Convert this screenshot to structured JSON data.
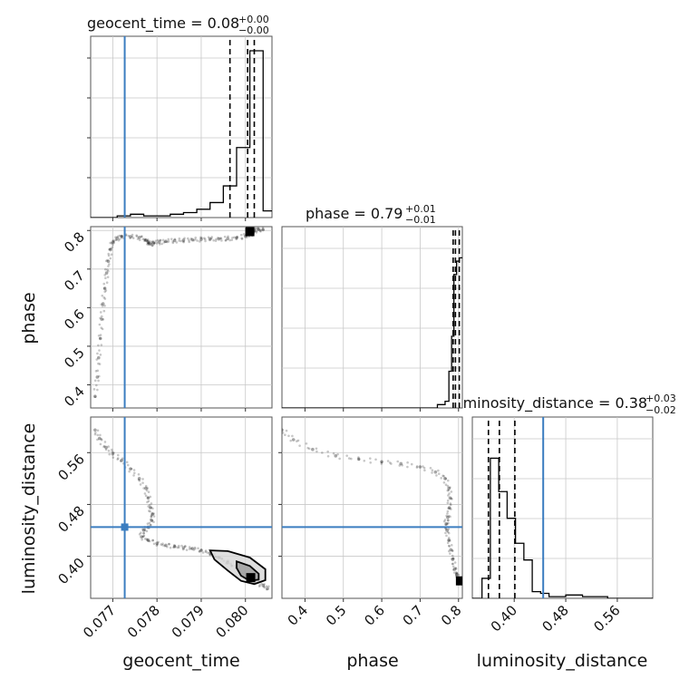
{
  "chart_data": {
    "type": "corner",
    "parameters": [
      {
        "name": "geocent_time",
        "axis_label": "geocent_time",
        "range": [
          0.0765,
          0.0806
        ],
        "ticks": [
          0.077,
          0.078,
          0.079,
          0.08
        ],
        "tick_labels": [
          "0.077",
          "0.078",
          "0.079",
          "0.080"
        ],
        "truth": 0.07727,
        "quantiles": [
          0.07965,
          0.08005,
          0.0802
        ],
        "title_text": "geocent_time = 0.08",
        "title_upper": "+0.00",
        "title_lower": "−0.00",
        "hist_edges": [
          0.0765,
          0.0768,
          0.0771,
          0.0774,
          0.0777,
          0.078,
          0.0783,
          0.0786,
          0.0789,
          0.0792,
          0.0795,
          0.0798,
          0.0801,
          0.0804,
          0.0806
        ],
        "hist_values": [
          0,
          0,
          0.01,
          0.02,
          0.01,
          0.01,
          0.02,
          0.03,
          0.05,
          0.09,
          0.19,
          0.42,
          1.0,
          0.04
        ]
      },
      {
        "name": "phase",
        "axis_label": "phase",
        "range": [
          0.34,
          0.81
        ],
        "ticks": [
          0.4,
          0.5,
          0.6,
          0.7,
          0.8
        ],
        "tick_labels": [
          "0.4",
          "0.5",
          "0.6",
          "0.7",
          "0.8"
        ],
        "truth": null,
        "quantiles": [
          0.786,
          0.792,
          0.802
        ],
        "title_text": "phase = 0.79",
        "title_upper": "+0.01",
        "title_lower": "−0.01",
        "hist_edges": [
          0.34,
          0.745,
          0.765,
          0.775,
          0.782,
          0.788,
          0.795,
          0.802,
          0.81
        ],
        "hist_values": [
          0,
          0.02,
          0.04,
          0.22,
          0.43,
          0.8,
          0.88,
          0.9
        ]
      },
      {
        "name": "luminosity_distance",
        "axis_label": "luminosity_distance",
        "range": [
          0.335,
          0.615
        ],
        "ticks": [
          0.4,
          0.48,
          0.56
        ],
        "tick_labels": [
          "0.40",
          "0.48",
          "0.56"
        ],
        "truth": 0.445,
        "quantiles": [
          0.36,
          0.377,
          0.401
        ],
        "title_text": "luminosity_distance = 0.38",
        "title_upper": "+0.03",
        "title_lower": "−0.02",
        "hist_edges": [
          0.335,
          0.35,
          0.363,
          0.376,
          0.389,
          0.402,
          0.415,
          0.428,
          0.441,
          0.454,
          0.467,
          0.48,
          0.493,
          0.506,
          0.519,
          0.532,
          0.545,
          0.615
        ],
        "hist_values": [
          0,
          0.12,
          0.84,
          0.64,
          0.48,
          0.33,
          0.23,
          0.04,
          0.03,
          0.01,
          0.01,
          0.02,
          0.02,
          0.01,
          0.01,
          0.01,
          0
        ]
      }
    ],
    "y_tick_labels": {
      "phase": [
        "0.4",
        "0.5",
        "0.6",
        "0.7",
        "0.8"
      ],
      "luminosity_distance": [
        "0.40",
        "0.48",
        "0.56"
      ]
    },
    "samples": {
      "geocent_time_vs_phase": [
        [
          0.0766,
          0.37
        ],
        [
          0.07665,
          0.42
        ],
        [
          0.07668,
          0.47
        ],
        [
          0.07672,
          0.52
        ],
        [
          0.07675,
          0.57
        ],
        [
          0.07678,
          0.61
        ],
        [
          0.07682,
          0.65
        ],
        [
          0.07686,
          0.69
        ],
        [
          0.0769,
          0.72
        ],
        [
          0.07695,
          0.75
        ],
        [
          0.077,
          0.77
        ],
        [
          0.0771,
          0.78
        ],
        [
          0.0772,
          0.785
        ],
        [
          0.0774,
          0.784
        ],
        [
          0.0776,
          0.782
        ],
        [
          0.07775,
          0.775
        ],
        [
          0.0778,
          0.77
        ],
        [
          0.07785,
          0.765
        ],
        [
          0.07792,
          0.768
        ],
        [
          0.07805,
          0.77
        ],
        [
          0.0782,
          0.772
        ],
        [
          0.0784,
          0.774
        ],
        [
          0.0786,
          0.775
        ],
        [
          0.0788,
          0.776
        ],
        [
          0.079,
          0.777
        ],
        [
          0.0792,
          0.778
        ],
        [
          0.0794,
          0.778
        ],
        [
          0.0796,
          0.779
        ],
        [
          0.0798,
          0.781
        ],
        [
          0.08,
          0.785
        ],
        [
          0.0801,
          0.79
        ],
        [
          0.08015,
          0.795
        ],
        [
          0.0802,
          0.8
        ],
        [
          0.0803,
          0.803
        ],
        [
          0.0804,
          0.802
        ]
      ],
      "geocent_time_vs_luminosity_distance": [
        [
          0.0766,
          0.595
        ],
        [
          0.0767,
          0.582
        ],
        [
          0.07685,
          0.568
        ],
        [
          0.077,
          0.558
        ],
        [
          0.0772,
          0.548
        ],
        [
          0.0774,
          0.535
        ],
        [
          0.0776,
          0.52
        ],
        [
          0.07775,
          0.505
        ],
        [
          0.0778,
          0.49
        ],
        [
          0.07785,
          0.475
        ],
        [
          0.0779,
          0.465
        ],
        [
          0.07788,
          0.455
        ],
        [
          0.0778,
          0.445
        ],
        [
          0.0777,
          0.44
        ],
        [
          0.07765,
          0.43
        ],
        [
          0.0778,
          0.425
        ],
        [
          0.078,
          0.42
        ],
        [
          0.0782,
          0.417
        ],
        [
          0.0784,
          0.415
        ],
        [
          0.0786,
          0.413
        ],
        [
          0.0788,
          0.412
        ],
        [
          0.079,
          0.409
        ],
        [
          0.0792,
          0.405
        ],
        [
          0.0794,
          0.398
        ],
        [
          0.0796,
          0.39
        ],
        [
          0.0798,
          0.382
        ],
        [
          0.08,
          0.372
        ],
        [
          0.0801,
          0.366
        ],
        [
          0.0802,
          0.36
        ],
        [
          0.0804,
          0.355
        ],
        [
          0.0805,
          0.35
        ]
      ],
      "phase_vs_luminosity_distance": [
        [
          0.34,
          0.595
        ],
        [
          0.37,
          0.58
        ],
        [
          0.42,
          0.565
        ],
        [
          0.48,
          0.555
        ],
        [
          0.54,
          0.55
        ],
        [
          0.6,
          0.546
        ],
        [
          0.65,
          0.543
        ],
        [
          0.7,
          0.538
        ],
        [
          0.74,
          0.53
        ],
        [
          0.765,
          0.52
        ],
        [
          0.775,
          0.505
        ],
        [
          0.778,
          0.49
        ],
        [
          0.776,
          0.475
        ],
        [
          0.772,
          0.46
        ],
        [
          0.768,
          0.45
        ],
        [
          0.77,
          0.44
        ],
        [
          0.775,
          0.425
        ],
        [
          0.78,
          0.41
        ],
        [
          0.785,
          0.395
        ],
        [
          0.79,
          0.38
        ],
        [
          0.795,
          0.372
        ],
        [
          0.8,
          0.365
        ],
        [
          0.805,
          0.36
        ],
        [
          0.808,
          0.358
        ]
      ]
    },
    "contours": {
      "geocent_time_vs_luminosity_distance": [
        [
          [
            0.0792,
            0.409
          ],
          [
            0.0796,
            0.408
          ],
          [
            0.0801,
            0.398
          ],
          [
            0.08045,
            0.38
          ],
          [
            0.08045,
            0.363
          ],
          [
            0.0802,
            0.357
          ],
          [
            0.0799,
            0.362
          ],
          [
            0.0796,
            0.378
          ],
          [
            0.0793,
            0.395
          ],
          [
            0.0792,
            0.409
          ]
        ],
        [
          [
            0.0798,
            0.392
          ],
          [
            0.0801,
            0.385
          ],
          [
            0.0803,
            0.373
          ],
          [
            0.0803,
            0.364
          ],
          [
            0.0801,
            0.362
          ],
          [
            0.0799,
            0.37
          ],
          [
            0.0798,
            0.382
          ],
          [
            0.0798,
            0.392
          ]
        ]
      ]
    },
    "peak_markers": {
      "geocent_time_vs_phase": [
        0.0801,
        0.797
      ],
      "geocent_time_vs_luminosity_distance": [
        0.08012,
        0.367
      ],
      "phase_vs_luminosity_distance": [
        0.805,
        0.362
      ]
    },
    "truth_marker": {
      "geocent_time_vs_luminosity_distance": [
        0.07727,
        0.445
      ]
    },
    "colors": {
      "truth": "#3b7dc0",
      "hist": "#000000",
      "samples": "#000000",
      "grid": "#c8c8c8"
    },
    "grid": true
  }
}
